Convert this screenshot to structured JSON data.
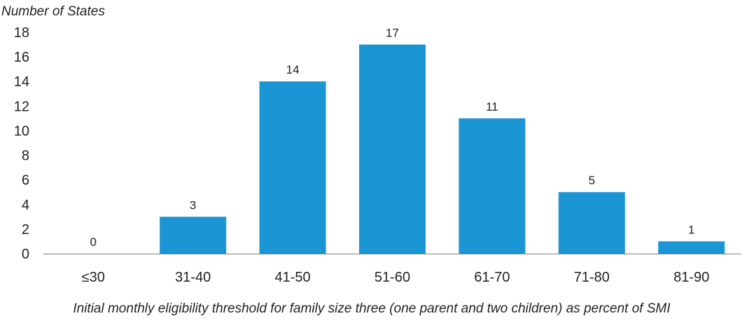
{
  "chart_data": {
    "type": "bar",
    "title": "",
    "ylabel": "Number of States",
    "xlabel": "Initial monthly eligibility threshold for family size three (one parent and two children) as percent of SMI",
    "categories": [
      "≤30",
      "31-40",
      "41-50",
      "51-60",
      "61-70",
      "71-80",
      "81-90"
    ],
    "values": [
      0,
      3,
      14,
      17,
      11,
      5,
      1
    ],
    "data_labels": [
      "0",
      "3",
      "14",
      "17",
      "11",
      "5",
      "1"
    ],
    "ylim": [
      0,
      18
    ],
    "yticks": [
      "0",
      "2",
      "4",
      "6",
      "8",
      "10",
      "12",
      "14",
      "16",
      "18"
    ],
    "grid": false,
    "legend": "none",
    "bar_color": "#1a96d4",
    "axis_color": "#7f7f7f"
  }
}
